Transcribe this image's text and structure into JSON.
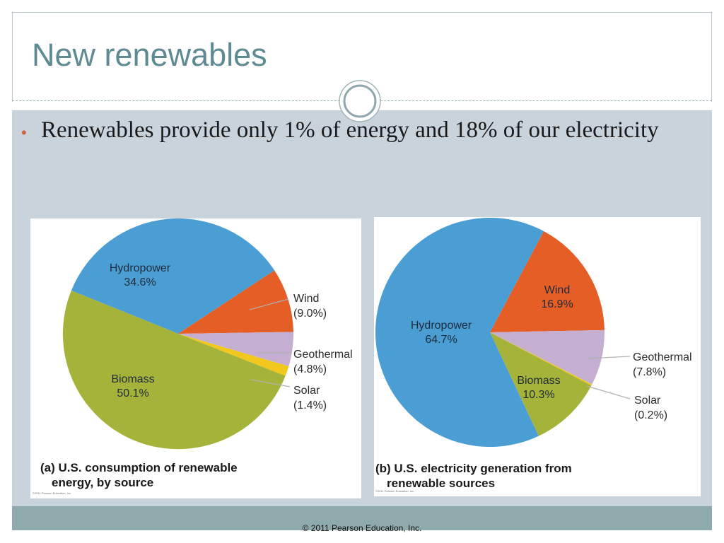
{
  "slide": {
    "title": "New renewables",
    "bullet": "Renewables provide only 1% of energy and 18% of our electricity",
    "footer": "© 2011 Pearson Education, Inc."
  },
  "colors": {
    "hydropower": "#4a9ed4",
    "wind": "#e55e26",
    "geothermal": "#c4afd3",
    "solar": "#f2c81c",
    "biomass": "#a6b33a",
    "title": "#5e8a91",
    "bullet_marker": "#d4603a"
  },
  "chart_data": [
    {
      "type": "pie",
      "caption_line1": "(a) U.S. consumption of renewable",
      "caption_line2": "energy, by source",
      "credit": "©2011 Pearson Education, Inc.",
      "slices": [
        {
          "label": "Hydropower",
          "value": 34.6,
          "display": "34.6%",
          "color_key": "hydropower",
          "label_placement": "inside"
        },
        {
          "label": "Wind",
          "value": 9.0,
          "display": "(9.0%)",
          "color_key": "wind",
          "label_placement": "outside"
        },
        {
          "label": "Geothermal",
          "value": 4.8,
          "display": "(4.8%)",
          "color_key": "geothermal",
          "label_placement": "outside"
        },
        {
          "label": "Solar",
          "value": 1.4,
          "display": "(1.4%)",
          "color_key": "solar",
          "label_placement": "outside"
        },
        {
          "label": "Biomass",
          "value": 50.1,
          "display": "50.1%",
          "color_key": "biomass",
          "label_placement": "inside"
        }
      ]
    },
    {
      "type": "pie",
      "caption_line1": "(b) U.S. electricity generation from",
      "caption_line2": "renewable sources",
      "credit": "©2011 Pearson Education, Inc.",
      "slices": [
        {
          "label": "Wind",
          "value": 16.9,
          "display": "16.9%",
          "color_key": "wind",
          "label_placement": "inside"
        },
        {
          "label": "Geothermal",
          "value": 7.8,
          "display": "(7.8%)",
          "color_key": "geothermal",
          "label_placement": "outside"
        },
        {
          "label": "Solar",
          "value": 0.2,
          "display": "(0.2%)",
          "color_key": "solar",
          "label_placement": "outside"
        },
        {
          "label": "Biomass",
          "value": 10.3,
          "display": "10.3%",
          "color_key": "biomass",
          "label_placement": "inside"
        },
        {
          "label": "Hydropower",
          "value": 64.7,
          "display": "64.7%",
          "color_key": "hydropower",
          "label_placement": "inside"
        }
      ]
    }
  ]
}
